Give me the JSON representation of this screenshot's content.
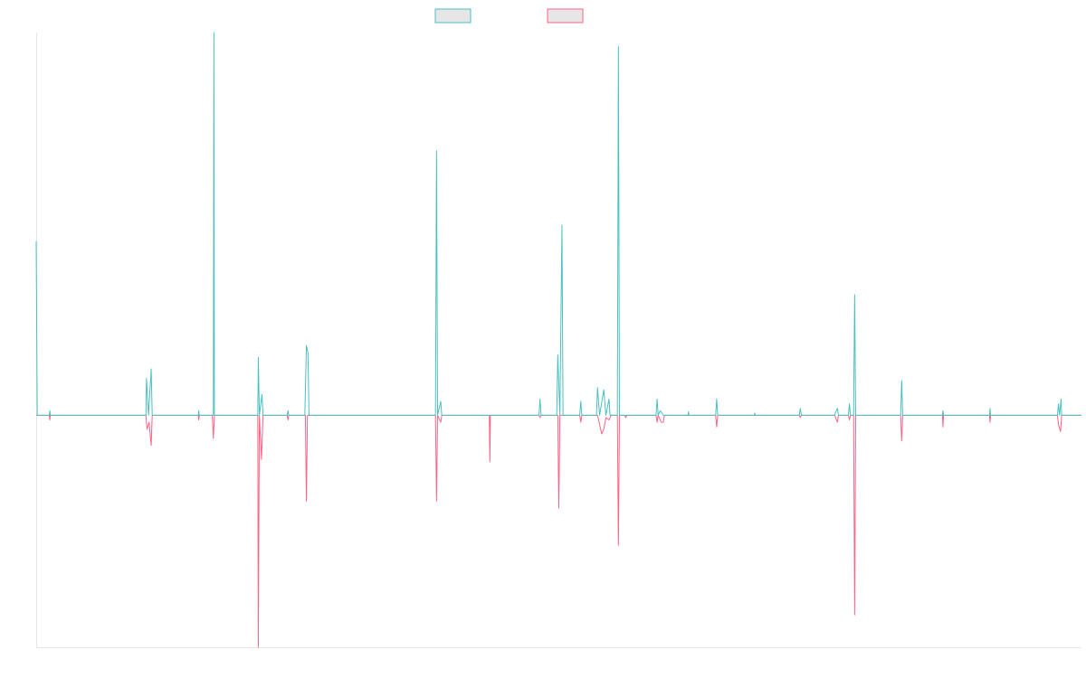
{
  "chart_data": {
    "type": "line",
    "title": "",
    "xlabel": "",
    "ylabel": "",
    "legend": {
      "position": "top-center"
    },
    "grid": false,
    "xlim": [
      0,
      200
    ],
    "ylim": [
      -1,
      1.65
    ],
    "series": [
      {
        "key": "upper",
        "color": "#4bc0c0",
        "points": [
          [
            0,
            0.75
          ],
          [
            0.2,
            0
          ],
          [
            2.5,
            0
          ],
          [
            2.6,
            0.02
          ],
          [
            2.7,
            0
          ],
          [
            21,
            0
          ],
          [
            21.1,
            0.16
          ],
          [
            21.5,
            0
          ],
          [
            22,
            0.2
          ],
          [
            22.2,
            0
          ],
          [
            31,
            0
          ],
          [
            31.1,
            0.02
          ],
          [
            31.2,
            0
          ],
          [
            33.9,
            0
          ],
          [
            34,
            1.65
          ],
          [
            34.1,
            0
          ],
          [
            42.4,
            0
          ],
          [
            42.5,
            0.25
          ],
          [
            42.7,
            0
          ],
          [
            43.2,
            0.09
          ],
          [
            43.4,
            0
          ],
          [
            48,
            0
          ],
          [
            48.2,
            0.02
          ],
          [
            48.3,
            0
          ],
          [
            51.4,
            0
          ],
          [
            51.7,
            0.3
          ],
          [
            52,
            0.27
          ],
          [
            52.2,
            0
          ],
          [
            76.4,
            0
          ],
          [
            76.6,
            1.14
          ],
          [
            76.8,
            0
          ],
          [
            77.4,
            0.06
          ],
          [
            77.6,
            0
          ],
          [
            96.2,
            0
          ],
          [
            96.4,
            0.07
          ],
          [
            96.6,
            0
          ],
          [
            99.6,
            0
          ],
          [
            99.8,
            0.26
          ],
          [
            100.2,
            0
          ],
          [
            100.6,
            0.82
          ],
          [
            100.8,
            0
          ],
          [
            104,
            0
          ],
          [
            104.2,
            0.06
          ],
          [
            104.4,
            0
          ],
          [
            107.2,
            0
          ],
          [
            107.4,
            0.12
          ],
          [
            107.8,
            0
          ],
          [
            108.6,
            0.11
          ],
          [
            109,
            0
          ],
          [
            109.6,
            0.07
          ],
          [
            109.8,
            0
          ],
          [
            111.2,
            0
          ],
          [
            111.4,
            1.59
          ],
          [
            111.6,
            0
          ],
          [
            118.6,
            0
          ],
          [
            118.8,
            0.07
          ],
          [
            119,
            0
          ],
          [
            119.4,
            0.02
          ],
          [
            120,
            0
          ],
          [
            124.7,
            0
          ],
          [
            124.8,
            0.015
          ],
          [
            124.9,
            0
          ],
          [
            130,
            0
          ],
          [
            130.2,
            0.07
          ],
          [
            130.4,
            0
          ],
          [
            137.4,
            0
          ],
          [
            137.5,
            0.01
          ],
          [
            137.6,
            0
          ],
          [
            146,
            0
          ],
          [
            146.2,
            0.03
          ],
          [
            146.4,
            0
          ],
          [
            152.8,
            0
          ],
          [
            152.9,
            0.01
          ],
          [
            153.3,
            0.03
          ],
          [
            153.5,
            0
          ],
          [
            155.4,
            0
          ],
          [
            155.6,
            0.05
          ],
          [
            155.8,
            0
          ],
          [
            156.4,
            0
          ],
          [
            156.6,
            0.52
          ],
          [
            156.8,
            0
          ],
          [
            165.4,
            0
          ],
          [
            165.6,
            0.15
          ],
          [
            165.8,
            0
          ],
          [
            173.4,
            0
          ],
          [
            173.5,
            0.02
          ],
          [
            173.6,
            0
          ],
          [
            182.4,
            0
          ],
          [
            182.5,
            0.03
          ],
          [
            182.6,
            0
          ],
          [
            195.4,
            0
          ],
          [
            195.6,
            0.05
          ],
          [
            195.8,
            0
          ],
          [
            196.1,
            0.07
          ],
          [
            196.2,
            0
          ],
          [
            200,
            0
          ]
        ]
      },
      {
        "key": "lower",
        "color": "#ff6384",
        "points": [
          [
            0,
            0
          ],
          [
            2.5,
            0
          ],
          [
            2.6,
            -0.02
          ],
          [
            2.7,
            0
          ],
          [
            21,
            0
          ],
          [
            21.2,
            -0.06
          ],
          [
            21.6,
            -0.03
          ],
          [
            22,
            -0.13
          ],
          [
            22.2,
            0
          ],
          [
            31,
            0
          ],
          [
            31.1,
            -0.02
          ],
          [
            31.2,
            0
          ],
          [
            33.7,
            0
          ],
          [
            33.9,
            -0.1
          ],
          [
            34.1,
            0
          ],
          [
            42.4,
            0
          ],
          [
            42.5,
            -1.0
          ],
          [
            42.7,
            0
          ],
          [
            43.1,
            -0.19
          ],
          [
            43.4,
            0
          ],
          [
            48,
            0
          ],
          [
            48.2,
            -0.02
          ],
          [
            48.3,
            0
          ],
          [
            51.5,
            0
          ],
          [
            51.7,
            -0.37
          ],
          [
            51.9,
            0
          ],
          [
            76.4,
            0
          ],
          [
            76.6,
            -0.37
          ],
          [
            76.8,
            0
          ],
          [
            77.4,
            -0.03
          ],
          [
            77.6,
            0
          ],
          [
            86.7,
            0
          ],
          [
            86.8,
            -0.2
          ],
          [
            86.9,
            0
          ],
          [
            96.2,
            0
          ],
          [
            96.4,
            -0.01
          ],
          [
            96.6,
            0
          ],
          [
            99.8,
            0
          ],
          [
            100,
            -0.4
          ],
          [
            100.2,
            0
          ],
          [
            104,
            0
          ],
          [
            104.2,
            -0.03
          ],
          [
            104.4,
            0
          ],
          [
            107.4,
            0
          ],
          [
            108.2,
            -0.08
          ],
          [
            108.6,
            -0.06
          ],
          [
            109,
            -0.01
          ],
          [
            109.6,
            -0.02
          ],
          [
            110,
            0
          ],
          [
            111.2,
            0
          ],
          [
            111.4,
            -0.56
          ],
          [
            111.6,
            0
          ],
          [
            112.6,
            0
          ],
          [
            112.8,
            -0.01
          ],
          [
            113,
            0
          ],
          [
            118.6,
            0
          ],
          [
            118.8,
            -0.03
          ],
          [
            119,
            0
          ],
          [
            119.6,
            -0.03
          ],
          [
            120,
            -0.03
          ],
          [
            120.2,
            0
          ],
          [
            130,
            0
          ],
          [
            130.2,
            -0.05
          ],
          [
            130.4,
            0
          ],
          [
            146,
            0
          ],
          [
            146.2,
            -0.01
          ],
          [
            146.4,
            0
          ],
          [
            152.8,
            0
          ],
          [
            153.3,
            -0.03
          ],
          [
            153.5,
            0
          ],
          [
            155.4,
            0
          ],
          [
            155.6,
            -0.02
          ],
          [
            155.8,
            0
          ],
          [
            156.4,
            0
          ],
          [
            156.6,
            -0.86
          ],
          [
            156.8,
            0
          ],
          [
            165.4,
            0
          ],
          [
            165.6,
            -0.11
          ],
          [
            165.8,
            0
          ],
          [
            173.4,
            0
          ],
          [
            173.5,
            -0.05
          ],
          [
            173.6,
            0
          ],
          [
            182.4,
            0
          ],
          [
            182.5,
            -0.03
          ],
          [
            182.6,
            0
          ],
          [
            195.4,
            0
          ],
          [
            195.6,
            -0.04
          ],
          [
            196,
            -0.07
          ],
          [
            196.2,
            0
          ],
          [
            200,
            0
          ]
        ]
      }
    ]
  }
}
